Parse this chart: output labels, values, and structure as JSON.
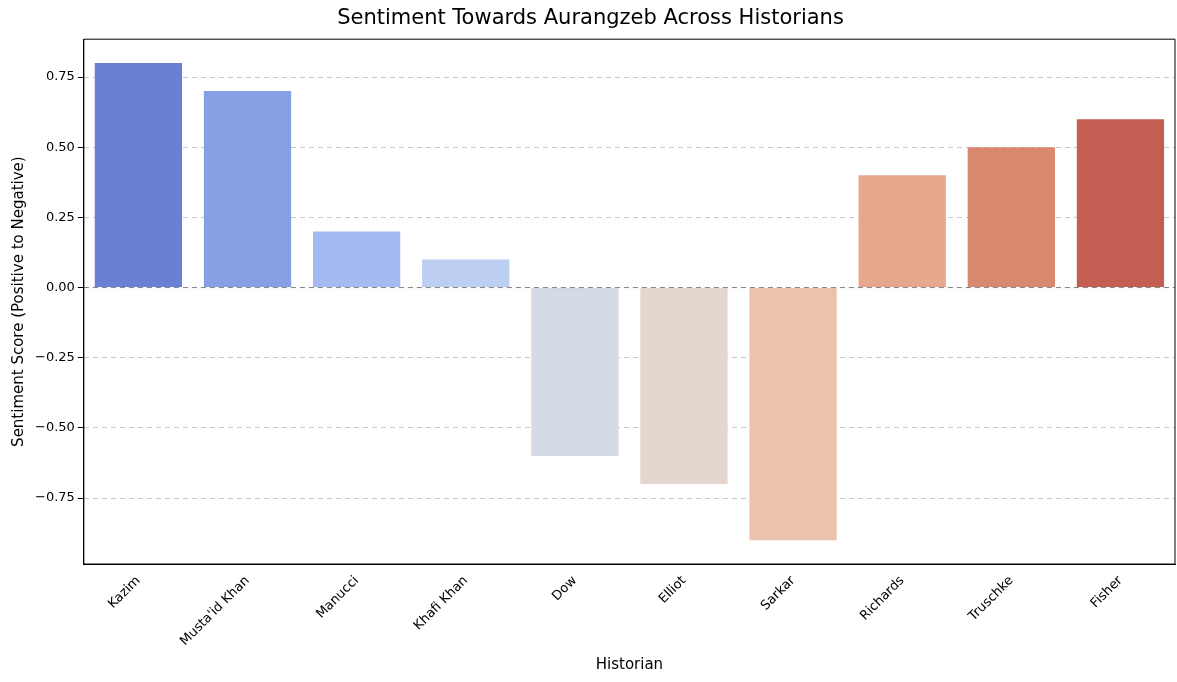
{
  "chart_data": {
    "type": "bar",
    "title": "Sentiment Towards Aurangzeb Across Historians",
    "xlabel": "Historian",
    "ylabel": "Sentiment Score (Positive to Negative)",
    "categories": [
      "Kazim",
      "Musta'id Khan",
      "Manucci",
      "Khafi Khan",
      "Dow",
      "Elliot",
      "Sarkar",
      "Richards",
      "Truschke",
      "Fisher"
    ],
    "values": [
      0.8,
      0.7,
      0.2,
      0.1,
      -0.6,
      -0.7,
      -0.9,
      0.4,
      0.5,
      0.6
    ],
    "colors": [
      "#6a80d4",
      "#86a0e6",
      "#a3bbf2",
      "#bccef2",
      "#d4dae6",
      "#e4d7cf",
      "#ebc3ad",
      "#e6a78c",
      "#d98870",
      "#c25f52"
    ],
    "ylim": [
      -0.985,
      0.885
    ],
    "yticks": [
      {
        "value": -0.75,
        "label": "−0.75"
      },
      {
        "value": -0.5,
        "label": "−0.50"
      },
      {
        "value": -0.25,
        "label": "−0.25"
      },
      {
        "value": 0,
        "label": "0.00"
      },
      {
        "value": 0.25,
        "label": "0.25"
      },
      {
        "value": 0.5,
        "label": "0.50"
      },
      {
        "value": 0.75,
        "label": "0.75"
      }
    ],
    "grid": "y",
    "ref_lines": [
      {
        "axis": "y",
        "value": 0,
        "color": "#808080",
        "line_style": "dashed"
      }
    ],
    "legend": false
  }
}
